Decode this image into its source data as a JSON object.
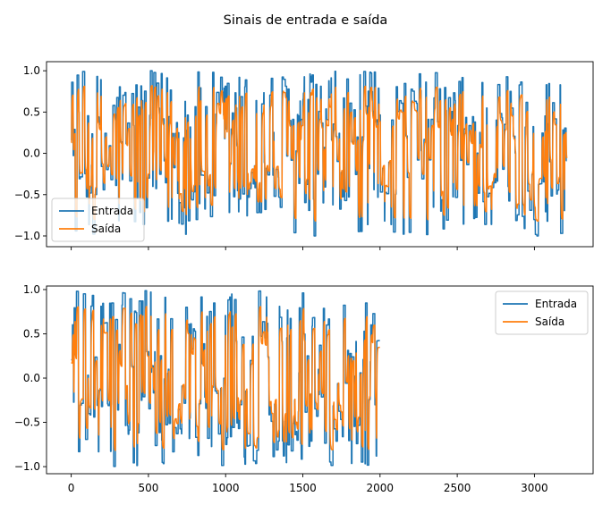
{
  "figure": {
    "title": "Sinais de entrada e saída"
  },
  "chart_data": [
    {
      "type": "line",
      "title": "",
      "xlabel": "",
      "ylabel": "",
      "xlim": [
        -160,
        3380
      ],
      "ylim": [
        -1.13,
        1.11
      ],
      "xticks": [
        0,
        500,
        1000,
        1500,
        2000,
        2500,
        3000
      ],
      "xtick_labels_visible": false,
      "yticks": [
        -1.0,
        -0.5,
        0.0,
        0.5,
        1.0
      ],
      "ytick_labels": [
        "−1.0",
        "−0.5",
        "0.0",
        "0.5",
        "1.0"
      ],
      "grid": false,
      "legend_position": "lower-left",
      "signal": {
        "x_start": 0,
        "x_end": 3210,
        "n_points": 3211,
        "approx_range": [
          -1.04,
          1.0
        ],
        "description": "random-level signal, output follows input with lag"
      },
      "series": [
        {
          "name": "Entrada",
          "color": "#1f77b4"
        },
        {
          "name": "Saída",
          "color": "#ff7f0e"
        }
      ]
    },
    {
      "type": "line",
      "title": "",
      "xlabel": "",
      "ylabel": "",
      "xlim": [
        -160,
        3380
      ],
      "ylim": [
        -1.08,
        1.04
      ],
      "xticks": [
        0,
        500,
        1000,
        1500,
        2000,
        2500,
        3000
      ],
      "xtick_labels": [
        "0",
        "500",
        "1000",
        "1500",
        "2000",
        "2500",
        "3000"
      ],
      "yticks": [
        -1.0,
        -0.5,
        0.0,
        0.5,
        1.0
      ],
      "ytick_labels": [
        "−1.0",
        "−0.5",
        "0.0",
        "0.5",
        "1.0"
      ],
      "grid": false,
      "legend_position": "upper-right",
      "signal": {
        "x_start": 0,
        "x_end": 1999,
        "n_points": 2000,
        "approx_range": [
          -1.0,
          0.97
        ],
        "description": "random-level signal, output follows input with lag"
      },
      "series": [
        {
          "name": "Entrada",
          "color": "#1f77b4"
        },
        {
          "name": "Saída",
          "color": "#ff7f0e"
        }
      ]
    }
  ]
}
